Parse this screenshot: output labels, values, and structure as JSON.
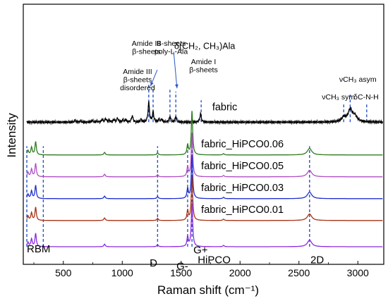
{
  "chart_data": {
    "type": "line",
    "xlabel": "Raman shift (cm⁻¹)",
    "ylabel": "Intensity",
    "xlim": [
      160,
      3220
    ],
    "x_ticks": [
      500,
      1000,
      1500,
      2000,
      2500,
      3000
    ],
    "x_tick_labels": [
      "500",
      "1000",
      "1500",
      "2000",
      "2500",
      "3000"
    ],
    "y_ticks": "none",
    "grid": false,
    "series": [
      {
        "name": "fabric",
        "color": "#000000",
        "baseline_level": 5.7,
        "peaks": [
          {
            "x": 600,
            "h": 0.08
          },
          {
            "x": 645,
            "h": 0.06
          },
          {
            "x": 745,
            "h": 0.08
          },
          {
            "x": 785,
            "h": 0.04
          },
          {
            "x": 830,
            "h": 0.12
          },
          {
            "x": 860,
            "h": 0.15
          },
          {
            "x": 890,
            "h": 0.08
          },
          {
            "x": 930,
            "h": 0.12
          },
          {
            "x": 960,
            "h": 0.18
          },
          {
            "x": 1005,
            "h": 0.1
          },
          {
            "x": 1030,
            "h": 0.1
          },
          {
            "x": 1085,
            "h": 0.3
          },
          {
            "x": 1160,
            "h": 0.12
          },
          {
            "x": 1225,
            "h": 0.9
          },
          {
            "x": 1262,
            "h": 0.45
          },
          {
            "x": 1312,
            "h": 0.12
          },
          {
            "x": 1335,
            "h": 0.12
          },
          {
            "x": 1405,
            "h": 0.25
          },
          {
            "x": 1455,
            "h": 0.25
          },
          {
            "x": 1665,
            "h": 0.4
          },
          {
            "x": 2880,
            "h": 0.2
          },
          {
            "x": 2935,
            "h": 0.55
          },
          {
            "x": 2975,
            "h": 0.25
          }
        ]
      },
      {
        "name": "fabric_HiPCO0.06",
        "color": "#2e7d1f",
        "baseline_level": 4.2,
        "label_level": 4.55
      },
      {
        "name": "fabric_HiPCO0.05",
        "color": "#b14fc5",
        "baseline_level": 3.2,
        "label_level": 3.55
      },
      {
        "name": "fabric_HiPCO0.03",
        "color": "#1f2fd0",
        "baseline_level": 2.2,
        "label_level": 2.55
      },
      {
        "name": "fabric_HiPCO0.01",
        "color": "#a83216",
        "baseline_level": 1.2,
        "label_level": 1.55
      },
      {
        "name": "HiPCO",
        "color": "#8a2be2",
        "baseline_level": 0.0,
        "label_level": 0.5
      }
    ],
    "cnt_peaks": [
      {
        "x": 200,
        "h": 0.2
      },
      {
        "x": 230,
        "h": 0.35
      },
      {
        "x": 265,
        "h": 0.6
      },
      {
        "x": 850,
        "h": 0.12
      },
      {
        "x": 1300,
        "h": 0.1
      },
      {
        "x": 1555,
        "h": 0.45
      },
      {
        "x": 1592,
        "h": 2.0
      },
      {
        "x": 1860,
        "h": 0.06
      },
      {
        "x": 2590,
        "h": 0.3
      }
    ],
    "reference_lines": [
      {
        "x": 1225,
        "from_level": 5.7,
        "to_level": 7.5
      },
      {
        "x": 1262,
        "from_level": 5.7,
        "to_level": 7.3
      },
      {
        "x": 1405,
        "from_level": 5.7,
        "to_level": 7.2
      },
      {
        "x": 1455,
        "from_level": 5.7,
        "to_level": 7.1
      },
      {
        "x": 1670,
        "from_level": 5.7,
        "to_level": 6.7
      },
      {
        "x": 2880,
        "from_level": 5.7,
        "to_level": 6.6
      },
      {
        "x": 2935,
        "from_level": 5.7,
        "to_level": 7.0
      },
      {
        "x": 3075,
        "from_level": 5.7,
        "to_level": 6.6
      },
      {
        "x": 190,
        "from_level": 0.0,
        "to_level": 4.6
      },
      {
        "x": 330,
        "from_level": 0.0,
        "to_level": 4.6
      },
      {
        "x": 1300,
        "from_level": 0.0,
        "to_level": 4.6
      },
      {
        "x": 1555,
        "from_level": 0.0,
        "to_level": 4.6
      },
      {
        "x": 1592,
        "from_level": 0.0,
        "to_level": 5.0
      },
      {
        "x": 2590,
        "from_level": 0.0,
        "to_level": 4.6
      }
    ],
    "annotations": [
      {
        "id": "amide3-dis",
        "lines": [
          "Amide III",
          "β-sheets",
          "disordered"
        ],
        "x": 1130,
        "level": 7.9,
        "arrow_to": {
          "x": 1240,
          "level": 7.35
        }
      },
      {
        "id": "amide3-beta",
        "lines": [
          "Amide III",
          "β-sheets"
        ],
        "x": 1205,
        "level": 9.2
      },
      {
        "id": "bsheets-ala",
        "lines": [
          "B-sheets",
          "poly-L-Ala"
        ],
        "x": 1415,
        "level": 9.2
      },
      {
        "id": "ch-ala",
        "lines": [
          "δ(CH₂, CH₃)Ala"
        ],
        "x": 1700,
        "level": 9.05,
        "arrow_to": {
          "x": 1465,
          "level": 7.25
        },
        "large": true
      },
      {
        "id": "amide1",
        "lines": [
          "Amide I",
          "β-sheets"
        ],
        "x": 1690,
        "level": 8.35
      },
      {
        "id": "ch3-asym",
        "lines": [
          "νCH₃ asym"
        ],
        "x": 3000,
        "level": 7.55
      },
      {
        "id": "ch3-sym",
        "lines": [
          "νCH₃ sym"
        ],
        "x": 2835,
        "level": 6.75
      },
      {
        "id": "c-n-h",
        "lines": [
          "δC-N-H"
        ],
        "x": 3070,
        "level": 6.75
      }
    ],
    "band_labels": [
      {
        "text": "RBM",
        "x": 290,
        "level": -0.25
      },
      {
        "text": "D",
        "x": 1265,
        "level": -0.9
      },
      {
        "text": "G-",
        "x": 1510,
        "level": -1.05
      },
      {
        "text": "G+",
        "x": 1665,
        "level": -0.3
      },
      {
        "text": "HiPCO",
        "x": 1780,
        "level": -0.75
      },
      {
        "text": "2D",
        "x": 2655,
        "level": -0.75
      }
    ]
  }
}
